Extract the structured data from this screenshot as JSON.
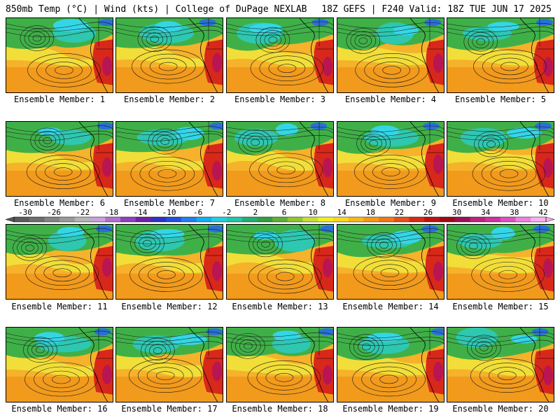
{
  "header": {
    "left": "850mb Temp (°C) | Wind (kts) | College of DuPage NEXLAB",
    "right": "18Z GEFS | F240 Valid: 18Z TUE JUN 17 2025"
  },
  "colorbar": {
    "labels": [
      "-30",
      "-26",
      "-22",
      "-18",
      "-14",
      "-10",
      "-6",
      "-2",
      "2",
      "6",
      "10",
      "14",
      "18",
      "22",
      "26",
      "30",
      "34",
      "38",
      "42"
    ],
    "colors": [
      "#5a5a5a",
      "#6e6e6e",
      "#848484",
      "#9a9a9a",
      "#b4b4b4",
      "#c8a0dc",
      "#b070d0",
      "#9040c0",
      "#7020a8",
      "#3030c8",
      "#2050e0",
      "#2080f0",
      "#10b0f0",
      "#20d0e0",
      "#20c8a8",
      "#20b070",
      "#30a040",
      "#60b030",
      "#90c830",
      "#c8e030",
      "#f0f020",
      "#f8d820",
      "#f8b818",
      "#f89818",
      "#f07818",
      "#e85018",
      "#d82818",
      "#c01010",
      "#a00818",
      "#a01050",
      "#c02080",
      "#d030a0",
      "#e050c0",
      "#f080e0",
      "#f8b0f0"
    ]
  },
  "panels": [
    {
      "label": "Ensemble Member: 1"
    },
    {
      "label": "Ensemble Member: 2"
    },
    {
      "label": "Ensemble Member: 3"
    },
    {
      "label": "Ensemble Member: 4"
    },
    {
      "label": "Ensemble Member: 5"
    },
    {
      "label": "Ensemble Member: 6"
    },
    {
      "label": "Ensemble Member: 7"
    },
    {
      "label": "Ensemble Member: 8"
    },
    {
      "label": "Ensemble Member: 9"
    },
    {
      "label": "Ensemble Member: 10"
    },
    {
      "label": "Ensemble Member: 11"
    },
    {
      "label": "Ensemble Member: 12"
    },
    {
      "label": "Ensemble Member: 13"
    },
    {
      "label": "Ensemble Member: 14"
    },
    {
      "label": "Ensemble Member: 15"
    },
    {
      "label": "Ensemble Member: 16"
    },
    {
      "label": "Ensemble Member: 17"
    },
    {
      "label": "Ensemble Member: 18"
    },
    {
      "label": "Ensemble Member: 19"
    },
    {
      "label": "Ensemble Member: 20"
    }
  ],
  "map_colors": {
    "warm": "#f5b22a",
    "orange": "#f29a1c",
    "yellow": "#f2e23a",
    "green": "#3fb048",
    "teal": "#2ec7b0",
    "cyan": "#34d6e6",
    "blue": "#2a6fd8",
    "hot": "#d8281a",
    "magenta": "#b01060",
    "contour": "#1a1a1a",
    "coast": "#000000"
  }
}
